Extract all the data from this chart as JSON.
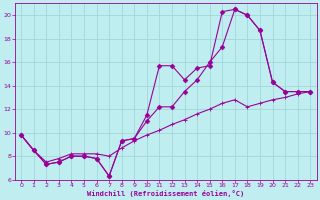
{
  "title": "",
  "xlabel": "Windchill (Refroidissement éolien,°C)",
  "ylabel": "",
  "bg_color": "#c0eef0",
  "grid_color": "#a0d8d8",
  "line_color": "#990099",
  "xlim": [
    -0.5,
    23.5
  ],
  "ylim": [
    6,
    21
  ],
  "yticks": [
    6,
    8,
    10,
    12,
    14,
    16,
    18,
    20
  ],
  "xticks": [
    0,
    1,
    2,
    3,
    4,
    5,
    6,
    7,
    8,
    9,
    10,
    11,
    12,
    13,
    14,
    15,
    16,
    17,
    18,
    19,
    20,
    21,
    22,
    23
  ],
  "line1_x": [
    0,
    1,
    2,
    3,
    4,
    5,
    6,
    7,
    8,
    9,
    10,
    11,
    12,
    13,
    14,
    15,
    16,
    17,
    18,
    19,
    20,
    21,
    22,
    23
  ],
  "line1_y": [
    9.8,
    8.5,
    7.3,
    7.5,
    8.0,
    8.0,
    7.8,
    6.3,
    9.3,
    9.5,
    11.5,
    15.7,
    15.7,
    14.5,
    15.5,
    15.7,
    20.3,
    20.5,
    20.0,
    18.7,
    14.3,
    13.5,
    13.5,
    13.5
  ],
  "line2_x": [
    0,
    1,
    2,
    3,
    4,
    5,
    6,
    7,
    8,
    9,
    10,
    11,
    12,
    13,
    14,
    15,
    16,
    17,
    18,
    19,
    20,
    21,
    22,
    23
  ],
  "line2_y": [
    9.8,
    8.5,
    7.3,
    7.5,
    8.0,
    8.0,
    7.8,
    6.3,
    9.3,
    9.5,
    11.0,
    12.2,
    12.2,
    13.5,
    14.5,
    16.0,
    17.3,
    20.5,
    20.0,
    18.7,
    14.3,
    13.5,
    13.5,
    13.5
  ],
  "line3_x": [
    0,
    1,
    2,
    3,
    4,
    5,
    6,
    7,
    8,
    9,
    10,
    11,
    12,
    13,
    14,
    15,
    16,
    17,
    18,
    19,
    20,
    21,
    22,
    23
  ],
  "line3_y": [
    9.8,
    8.5,
    7.5,
    7.8,
    8.2,
    8.2,
    8.2,
    8.0,
    8.7,
    9.3,
    9.8,
    10.2,
    10.7,
    11.1,
    11.6,
    12.0,
    12.5,
    12.8,
    12.2,
    12.5,
    12.8,
    13.0,
    13.3,
    13.5
  ]
}
